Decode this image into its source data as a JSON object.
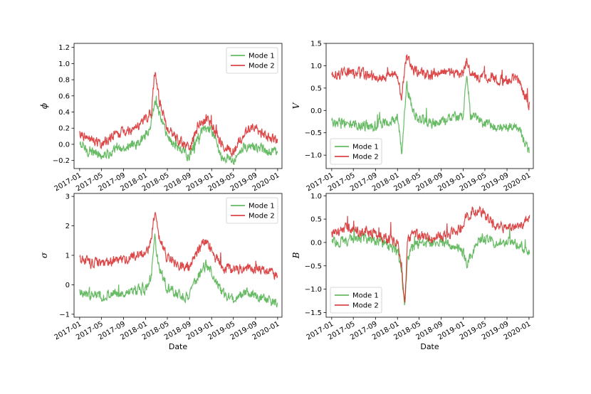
{
  "colors": {
    "mode1": "#4daf4a",
    "mode2": "#d62728"
  },
  "chart_data": [
    {
      "type": "line",
      "ylabel": "ϕ",
      "xlabel": "",
      "xlim": [
        "2016-12-01",
        "2020-01-25"
      ],
      "ylim": [
        -0.3,
        1.25
      ],
      "yticks": [
        -0.2,
        0.0,
        0.2,
        0.4,
        0.6,
        0.8,
        1.0,
        1.2
      ],
      "ytick_labels": [
        "−0.2",
        "0.0",
        "0.2",
        "0.4",
        "0.6",
        "0.8",
        "1.0",
        "1.2"
      ],
      "legend": "top-right",
      "series": [
        {
          "name": "Mode 1",
          "color": "#4daf4a",
          "x": [
            "2017-01-01",
            "2017-03-01",
            "2017-05-01",
            "2017-07-01",
            "2017-09-01",
            "2017-11-01",
            "2018-01-01",
            "2018-02-01",
            "2018-02-20",
            "2018-03-15",
            "2018-05-01",
            "2018-07-01",
            "2018-09-01",
            "2018-10-20",
            "2018-12-01",
            "2019-01-01",
            "2019-03-01",
            "2019-05-01",
            "2019-07-01",
            "2019-09-01",
            "2019-11-01",
            "2020-01-01"
          ],
          "y": [
            0.0,
            -0.1,
            -0.12,
            -0.1,
            -0.05,
            0.0,
            0.1,
            0.25,
            0.5,
            0.4,
            0.1,
            -0.05,
            -0.15,
            0.1,
            0.2,
            0.15,
            -0.15,
            -0.2,
            0.0,
            -0.05,
            -0.1,
            -0.08
          ]
        },
        {
          "name": "Mode 2",
          "color": "#d62728",
          "x": [
            "2017-01-01",
            "2017-03-01",
            "2017-05-01",
            "2017-07-01",
            "2017-09-01",
            "2017-11-01",
            "2018-01-01",
            "2018-02-01",
            "2018-02-20",
            "2018-03-15",
            "2018-05-01",
            "2018-07-01",
            "2018-09-01",
            "2018-10-20",
            "2018-12-01",
            "2019-01-01",
            "2019-03-01",
            "2019-05-01",
            "2019-07-01",
            "2019-09-01",
            "2019-11-01",
            "2020-01-01"
          ],
          "y": [
            0.15,
            0.05,
            0.0,
            0.1,
            0.15,
            0.2,
            0.3,
            0.4,
            0.9,
            0.55,
            0.2,
            0.05,
            -0.05,
            0.25,
            0.3,
            0.25,
            0.0,
            -0.1,
            0.15,
            0.2,
            0.1,
            0.05
          ]
        }
      ]
    },
    {
      "type": "line",
      "ylabel": "V",
      "xlabel": "",
      "xlim": [
        "2016-12-01",
        "2020-01-25"
      ],
      "ylim": [
        -1.3,
        1.5
      ],
      "yticks": [
        -1.0,
        -0.5,
        0.0,
        0.5,
        1.0,
        1.5
      ],
      "ytick_labels": [
        "−1.0",
        "−0.5",
        "0.0",
        "0.5",
        "1.0",
        "1.5"
      ],
      "legend": "bottom-left",
      "series": [
        {
          "name": "Mode 1",
          "color": "#4daf4a",
          "x": [
            "2017-01-01",
            "2017-04-01",
            "2017-07-01",
            "2017-10-01",
            "2018-01-01",
            "2018-01-25",
            "2018-02-20",
            "2018-04-01",
            "2018-07-01",
            "2018-10-01",
            "2019-01-01",
            "2019-01-20",
            "2019-02-10",
            "2019-05-01",
            "2019-08-01",
            "2019-11-01",
            "2020-01-05"
          ],
          "y": [
            -0.25,
            -0.3,
            -0.35,
            -0.3,
            -0.2,
            -0.9,
            0.6,
            -0.1,
            -0.3,
            -0.2,
            -0.15,
            0.9,
            -0.1,
            -0.3,
            -0.4,
            -0.35,
            -1.0
          ]
        },
        {
          "name": "Mode 2",
          "color": "#d62728",
          "x": [
            "2017-01-01",
            "2017-04-01",
            "2017-07-01",
            "2017-10-01",
            "2018-01-01",
            "2018-01-25",
            "2018-02-20",
            "2018-04-01",
            "2018-07-01",
            "2018-10-01",
            "2019-01-01",
            "2019-01-20",
            "2019-02-10",
            "2019-05-01",
            "2019-08-01",
            "2019-11-01",
            "2020-01-05"
          ],
          "y": [
            0.8,
            0.85,
            0.8,
            0.75,
            0.8,
            0.3,
            1.2,
            0.9,
            0.8,
            0.85,
            0.8,
            1.1,
            0.8,
            0.75,
            0.7,
            0.7,
            0.1
          ]
        }
      ]
    },
    {
      "type": "line",
      "ylabel": "σ",
      "xlabel": "Date",
      "xlim": [
        "2016-12-01",
        "2020-01-25"
      ],
      "ylim": [
        -1.1,
        3.1
      ],
      "yticks": [
        -1,
        0,
        1,
        2,
        3
      ],
      "ytick_labels": [
        "−1",
        "0",
        "1",
        "2",
        "3"
      ],
      "legend": "top-right",
      "series": [
        {
          "name": "Mode 1",
          "color": "#4daf4a",
          "x": [
            "2017-01-01",
            "2017-03-01",
            "2017-05-01",
            "2017-07-01",
            "2017-09-01",
            "2017-11-01",
            "2018-01-01",
            "2018-02-01",
            "2018-02-20",
            "2018-03-15",
            "2018-05-01",
            "2018-07-01",
            "2018-09-01",
            "2018-10-20",
            "2018-12-01",
            "2019-01-01",
            "2019-03-01",
            "2019-05-01",
            "2019-07-01",
            "2019-09-01",
            "2019-11-01",
            "2020-01-01"
          ],
          "y": [
            -0.2,
            -0.35,
            -0.4,
            -0.3,
            -0.3,
            -0.2,
            -0.1,
            0.3,
            1.6,
            0.6,
            -0.1,
            -0.3,
            -0.4,
            0.3,
            0.7,
            0.4,
            -0.3,
            -0.5,
            -0.3,
            -0.4,
            -0.5,
            -0.7
          ]
        },
        {
          "name": "Mode 2",
          "color": "#d62728",
          "x": [
            "2017-01-01",
            "2017-03-01",
            "2017-05-01",
            "2017-07-01",
            "2017-09-01",
            "2017-11-01",
            "2018-01-01",
            "2018-02-01",
            "2018-02-20",
            "2018-03-15",
            "2018-05-01",
            "2018-07-01",
            "2018-09-01",
            "2018-10-20",
            "2018-12-01",
            "2019-01-01",
            "2019-03-01",
            "2019-05-01",
            "2019-07-01",
            "2019-09-01",
            "2019-11-01",
            "2020-01-01"
          ],
          "y": [
            0.9,
            0.75,
            0.7,
            0.8,
            0.85,
            1.0,
            1.1,
            1.5,
            2.5,
            1.6,
            0.9,
            0.7,
            0.6,
            1.2,
            1.5,
            1.1,
            0.6,
            0.5,
            0.6,
            0.55,
            0.5,
            0.3
          ]
        }
      ]
    },
    {
      "type": "line",
      "ylabel": "B",
      "xlabel": "Date",
      "xlim": [
        "2016-12-01",
        "2020-01-25"
      ],
      "ylim": [
        -1.6,
        1.05
      ],
      "yticks": [
        -1.5,
        -1.0,
        -0.5,
        0.0,
        0.5,
        1.0
      ],
      "ytick_labels": [
        "−1.5",
        "−1.0",
        "−0.5",
        "0.0",
        "0.5",
        "1.0"
      ],
      "legend": "bottom-left",
      "series": [
        {
          "name": "Mode 1",
          "color": "#4daf4a",
          "x": [
            "2017-01-01",
            "2017-04-01",
            "2017-07-01",
            "2017-10-01",
            "2018-01-01",
            "2018-01-25",
            "2018-02-10",
            "2018-02-25",
            "2018-04-01",
            "2018-07-01",
            "2018-10-01",
            "2019-01-01",
            "2019-01-20",
            "2019-04-01",
            "2019-07-01",
            "2019-10-01",
            "2020-01-05"
          ],
          "y": [
            0.0,
            0.05,
            0.1,
            0.0,
            -0.2,
            -0.6,
            -1.5,
            -0.3,
            -0.05,
            0.0,
            0.0,
            -0.2,
            -0.5,
            0.1,
            0.0,
            0.05,
            -0.2
          ]
        },
        {
          "name": "Mode 2",
          "color": "#d62728",
          "x": [
            "2017-01-01",
            "2017-04-01",
            "2017-07-01",
            "2017-10-01",
            "2018-01-01",
            "2018-01-25",
            "2018-02-10",
            "2018-02-25",
            "2018-04-01",
            "2018-07-01",
            "2018-10-01",
            "2019-01-01",
            "2019-01-20",
            "2019-04-01",
            "2019-07-01",
            "2019-10-01",
            "2020-01-05"
          ],
          "y": [
            0.2,
            0.3,
            0.25,
            0.15,
            0.0,
            -0.5,
            -1.4,
            0.0,
            0.2,
            0.1,
            0.15,
            0.3,
            0.6,
            0.7,
            0.35,
            0.3,
            0.5
          ]
        }
      ]
    }
  ],
  "x_ticks": [
    {
      "date": "2017-01-01",
      "label": "2017-01"
    },
    {
      "date": "2017-05-01",
      "label": "2017-05"
    },
    {
      "date": "2017-09-01",
      "label": "2017-09"
    },
    {
      "date": "2018-01-01",
      "label": "2018-01"
    },
    {
      "date": "2018-05-01",
      "label": "2018-05"
    },
    {
      "date": "2018-09-01",
      "label": "2018-09"
    },
    {
      "date": "2019-01-01",
      "label": "2019-01"
    },
    {
      "date": "2019-05-01",
      "label": "2019-05"
    },
    {
      "date": "2019-09-01",
      "label": "2019-09"
    },
    {
      "date": "2020-01-01",
      "label": "2020-01"
    }
  ]
}
